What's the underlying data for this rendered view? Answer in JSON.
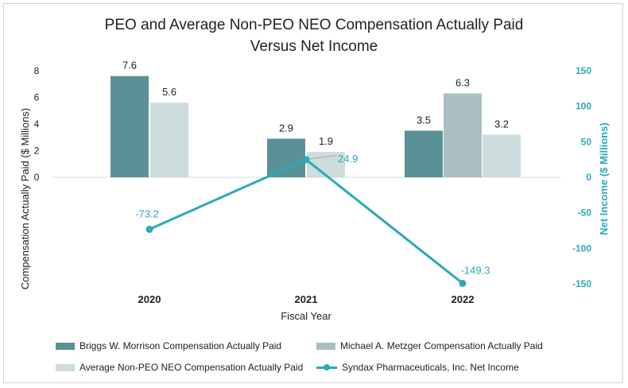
{
  "chart_data": {
    "type": "bar",
    "title_line1": "PEO and Average Non-PEO NEO Compensation Actually Paid",
    "title_line2": "Versus Net Income",
    "xlabel": "Fiscal Year",
    "ylabel_left": "Compensation Actually Paid ($ Millions)",
    "ylabel_right": "Net Income ($ Millions)",
    "ylim_left": [
      0,
      8
    ],
    "yticks_left": [
      "0",
      "2",
      "4",
      "6",
      "8"
    ],
    "ylim_right": [
      -150,
      150
    ],
    "yticks_right": [
      "150",
      "100",
      "50",
      "0",
      "-50",
      "-100",
      "-150"
    ],
    "categories": [
      "2020",
      "2021",
      "2022"
    ],
    "series": [
      {
        "name": "Briggs W. Morrison Compensation Actually Paid",
        "values": [
          7.6,
          2.9,
          3.5
        ],
        "labels": [
          "7.6",
          "2.9",
          "3.5"
        ],
        "color": "#5a9196"
      },
      {
        "name": "Michael A. Metzger Compensation Actually Paid",
        "values": [
          null,
          null,
          6.3
        ],
        "labels": [
          "",
          "",
          "6.3"
        ],
        "color": "#a9bec0"
      },
      {
        "name": "Average Non-PEO NEO Compensation Actually Paid",
        "values": [
          5.6,
          1.9,
          3.2
        ],
        "labels": [
          "5.6",
          "1.9",
          "3.2"
        ],
        "color": "#cddcdd"
      }
    ],
    "line_series": {
      "name": "Syndax Pharmaceuticals, Inc. Net Income",
      "values": [
        -73.2,
        24.9,
        -149.3
      ],
      "labels": [
        "-73.2",
        "24.9",
        "-149.3"
      ],
      "color": "#2ba9b8"
    }
  }
}
